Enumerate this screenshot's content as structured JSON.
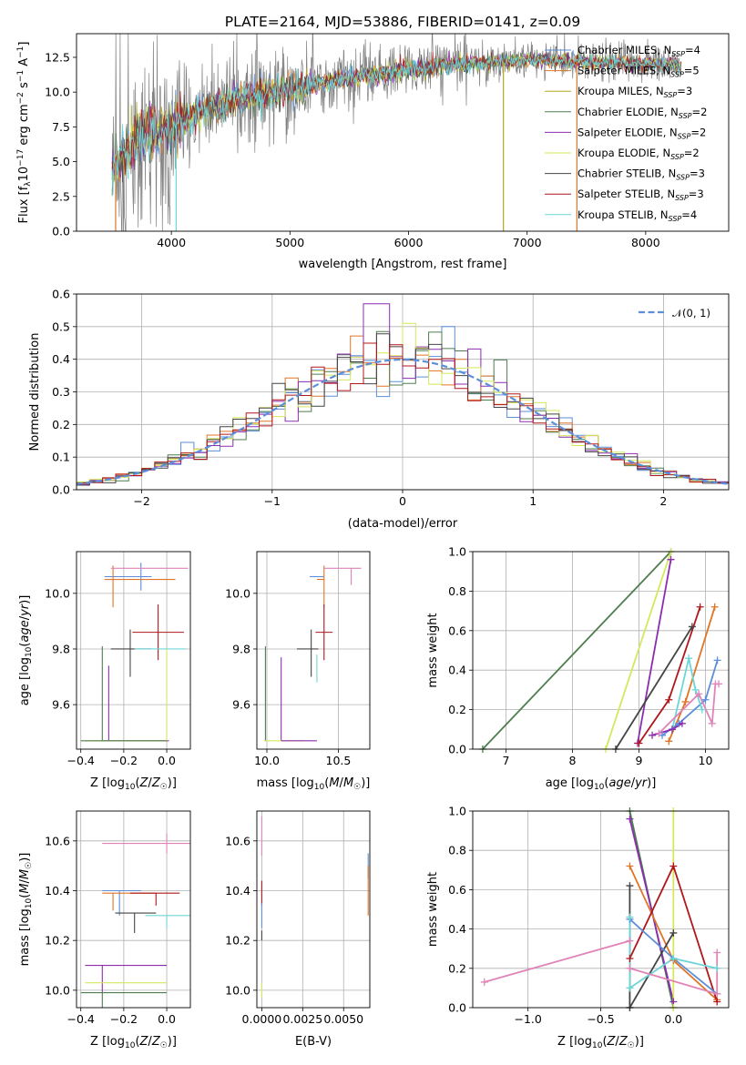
{
  "colors": {
    "Chabrier MILES": "#5b8fd9",
    "Salpeter MILES": "#e07528",
    "Kroupa MILES": "#b5a51e",
    "Chabrier ELODIE": "#4e7d4e",
    "Salpeter ELODIE": "#8c2db0",
    "Kroupa ELODIE": "#d4e85a",
    "Chabrier STELIB": "#444444",
    "Salpeter STELIB": "#b0161a",
    "Kroupa STELIB": "#6dd5d8",
    "pink": "#e083b8",
    "data_grey": "#808080",
    "normal_curve": "#5b8fd9"
  },
  "chart_data": [
    {
      "id": "spectrum",
      "type": "line",
      "title": "PLATE=2164, MJD=53886, FIBERID=0141, z=0.09",
      "xlabel": "wavelength [Angstrom, rest frame]",
      "ylabel": "Flux [f_λ 10^-17 erg cm^-2 s^-1 A^-1]",
      "xlim": [
        3200,
        8700
      ],
      "ylim": [
        0,
        14.2
      ],
      "xticks": [
        "4000",
        "5000",
        "6000",
        "7000",
        "8000"
      ],
      "yticks": [
        "0.0",
        "2.5",
        "5.0",
        "7.5",
        "10.0",
        "12.5"
      ],
      "legend_position": "right",
      "legend": [
        {
          "name": "Chabrier MILES",
          "nssp": "4"
        },
        {
          "name": "Salpeter MILES",
          "nssp": "5"
        },
        {
          "name": "Kroupa MILES",
          "nssp": "3"
        },
        {
          "name": "Chabrier ELODIE",
          "nssp": "2"
        },
        {
          "name": "Salpeter ELODIE",
          "nssp": "2"
        },
        {
          "name": "Kroupa ELODIE",
          "nssp": "2"
        },
        {
          "name": "Chabrier STELIB",
          "nssp": "3"
        },
        {
          "name": "Salpeter STELIB",
          "nssp": "3"
        },
        {
          "name": "Kroupa STELIB",
          "nssp": "4"
        }
      ],
      "continuum": {
        "x": [
          3500,
          3600,
          3700,
          3800,
          3900,
          4000,
          4200,
          4500,
          4800,
          5000,
          5200,
          5500,
          5800,
          6000,
          6300,
          6600,
          7000,
          7400,
          7800,
          8200,
          8300
        ],
        "y": [
          4.5,
          5.6,
          6.5,
          7.0,
          7.3,
          7.6,
          8.4,
          9.4,
          9.9,
          10.2,
          10.6,
          11.0,
          11.3,
          11.6,
          11.9,
          12.1,
          12.3,
          12.2,
          12.1,
          12.0,
          11.9
        ]
      },
      "features": [
        {
          "name": "drop",
          "x": 3530,
          "y_min": 0
        },
        {
          "name": "drop",
          "x": 4040,
          "y_min": 0
        },
        {
          "name": "drop",
          "x": 6800,
          "y_min": 0
        },
        {
          "name": "drop",
          "x": 7420,
          "y_min": 0
        }
      ]
    },
    {
      "id": "residuals",
      "type": "histogram",
      "xlabel": "(data-model)/error",
      "ylabel": "Normed distribution",
      "xlim": [
        -2.5,
        2.5
      ],
      "ylim": [
        0,
        0.6
      ],
      "xticks": [
        "−2",
        "−1",
        "0",
        "1",
        "2"
      ],
      "yticks": [
        "0.0",
        "0.1",
        "0.2",
        "0.3",
        "0.4",
        "0.5",
        "0.6"
      ],
      "grid": true,
      "legend_position": "top-right",
      "legend": "𝒩(0, 1)",
      "bin_width": 0.1,
      "peak_values": [
        0.57,
        0.51,
        0.5,
        0.48,
        0.47,
        0.45
      ],
      "normal": {
        "mean": 0,
        "sigma": 1
      }
    },
    {
      "id": "age_vs_Z",
      "type": "errorbar",
      "xlabel": "Z [log10(Z/Z☉)]",
      "ylabel": "age  [log10(age/yr)]",
      "xlim": [
        -0.42,
        0.11
      ],
      "ylim": [
        9.44,
        10.15
      ],
      "xticks": [
        "−0.4",
        "−0.2",
        "0.0"
      ],
      "yticks": [
        "9.6",
        "9.8",
        "10.0"
      ],
      "grid": true,
      "points": [
        {
          "series": "Chabrier MILES",
          "x": -0.12,
          "y": 10.06,
          "xerr": [
            0.17,
            0.05
          ],
          "yerr": [
            0.05,
            0.05
          ]
        },
        {
          "series": "Salpeter MILES",
          "x": -0.25,
          "y": 10.05,
          "xerr": [
            0.04,
            0.29
          ],
          "yerr": [
            0.1,
            0.05
          ]
        },
        {
          "series": "pink",
          "x": 0.1,
          "y": 10.09,
          "xerr": [
            0.36,
            0.0
          ],
          "yerr": [
            0.0,
            0.0
          ]
        },
        {
          "series": "Salpeter STELIB",
          "x": -0.04,
          "y": 9.86,
          "xerr": [
            0.12,
            0.12
          ],
          "yerr": [
            0.1,
            0.1
          ]
        },
        {
          "series": "Chabrier STELIB",
          "x": -0.17,
          "y": 9.8,
          "xerr": [
            0.09,
            0.1
          ],
          "yerr": [
            0.1,
            0.07
          ]
        },
        {
          "series": "Kroupa STELIB",
          "x": -0.03,
          "y": 9.8,
          "xerr": [
            0.12,
            0.12
          ],
          "yerr": [
            0.0,
            0.0
          ]
        },
        {
          "series": "Chabrier ELODIE",
          "x": -0.3,
          "y": 9.81,
          "xerr": [
            0.0,
            0.0
          ],
          "yerr": [
            0.34,
            0.0
          ]
        },
        {
          "series": "Salpeter ELODIE",
          "x": -0.27,
          "y": 9.47,
          "xerr": [
            0.03,
            0.28
          ],
          "yerr": [
            0.0,
            0.27
          ]
        },
        {
          "series": "Kroupa ELODIE",
          "x": 0.0,
          "y": 9.47,
          "xerr": [
            0.38,
            0.0
          ],
          "yerr": [
            0.0,
            0.33
          ]
        },
        {
          "series": "Chabrier ELODIE",
          "x": -0.4,
          "y": 9.47,
          "xerr": [
            0.0,
            0.4
          ],
          "yerr": [
            0.0,
            0.0
          ]
        }
      ]
    },
    {
      "id": "age_vs_mass",
      "type": "errorbar",
      "xlabel": "mass [log10(M/M☉)]",
      "ylabel": "",
      "xlim": [
        9.93,
        10.72
      ],
      "ylim": [
        9.44,
        10.15
      ],
      "xticks": [
        "10.0",
        "10.5"
      ],
      "yticks": [
        "9.6",
        "9.8",
        "10.0"
      ],
      "grid": true,
      "points": [
        {
          "series": "Chabrier MILES",
          "x": 10.3,
          "y": 10.06,
          "xerr": [
            0.0,
            0.1
          ],
          "yerr": [
            0.0,
            0.0
          ]
        },
        {
          "series": "Salpeter MILES",
          "x": 10.4,
          "y": 10.05,
          "xerr": [
            0.05,
            0.0
          ],
          "yerr": [
            0.1,
            0.05
          ]
        },
        {
          "series": "pink",
          "x": 10.59,
          "y": 10.09,
          "xerr": [
            0.19,
            0.07
          ],
          "yerr": [
            0.06,
            0.0
          ]
        },
        {
          "series": "Salpeter STELIB",
          "x": 10.4,
          "y": 9.86,
          "xerr": [
            0.06,
            0.06
          ],
          "yerr": [
            0.1,
            0.1
          ]
        },
        {
          "series": "Chabrier STELIB",
          "x": 10.31,
          "y": 9.8,
          "xerr": [
            0.1,
            0.05
          ],
          "yerr": [
            0.1,
            0.07
          ]
        },
        {
          "series": "Kroupa STELIB",
          "x": 10.35,
          "y": 9.78,
          "xerr": [
            0.0,
            0.0
          ],
          "yerr": [
            0.1,
            0.0
          ]
        },
        {
          "series": "Chabrier ELODIE",
          "x": 9.99,
          "y": 9.81,
          "xerr": [
            0.0,
            0.0
          ],
          "yerr": [
            0.34,
            0.0
          ]
        },
        {
          "series": "Salpeter ELODIE",
          "x": 10.1,
          "y": 9.77,
          "xerr": [
            0.0,
            0.0
          ],
          "yerr": [
            0.3,
            0.0
          ]
        },
        {
          "series": "Kroupa ELODIE",
          "x": 10.03,
          "y": 9.47,
          "xerr": [
            0.05,
            0.23
          ],
          "yerr": [
            0.0,
            0.0
          ]
        },
        {
          "series": "Salpeter ELODIE",
          "x": 10.35,
          "y": 9.47,
          "xerr": [
            0.25,
            0.0
          ],
          "yerr": [
            0.0,
            0.0
          ]
        }
      ]
    },
    {
      "id": "weight_vs_age",
      "type": "line",
      "xlabel": "age  [log10(age/yr)]",
      "ylabel": "mass weight",
      "xlim": [
        6.5,
        10.35
      ],
      "ylim": [
        0,
        1.0
      ],
      "xticks": [
        "7",
        "8",
        "9",
        "10"
      ],
      "yticks": [
        "0.0",
        "0.2",
        "0.4",
        "0.6",
        "0.8",
        "1.0"
      ],
      "grid": true,
      "series": [
        {
          "name": "Chabrier ELODIE",
          "x": [
            6.65,
            9.48
          ],
          "y": [
            0.0,
            1.0
          ]
        },
        {
          "name": "Kroupa ELODIE",
          "x": [
            8.5,
            9.48
          ],
          "y": [
            0.0,
            1.0
          ]
        },
        {
          "name": "Salpeter ELODIE",
          "x": [
            8.98,
            9.48
          ],
          "y": [
            0.03,
            0.96
          ]
        },
        {
          "name": "Chabrier STELIB",
          "x": [
            8.65,
            9.8
          ],
          "y": [
            0.0,
            0.62
          ]
        },
        {
          "name": "Salpeter STELIB",
          "x": [
            9.0,
            9.45,
            9.92
          ],
          "y": [
            0.03,
            0.25,
            0.72
          ]
        },
        {
          "name": "Salpeter MILES",
          "x": [
            9.45,
            9.7,
            10.14
          ],
          "y": [
            0.04,
            0.24,
            0.72
          ]
        },
        {
          "name": "Chabrier MILES",
          "x": [
            9.35,
            9.6,
            10.0,
            10.18
          ],
          "y": [
            0.07,
            0.13,
            0.25,
            0.45
          ]
        },
        {
          "name": "Kroupa STELIB",
          "x": [
            9.5,
            9.75,
            9.85,
            9.95
          ],
          "y": [
            0.1,
            0.46,
            0.3,
            0.2
          ]
        },
        {
          "name": "Salpeter ELODIE",
          "x": [
            9.2,
            9.5,
            9.65
          ],
          "y": [
            0.07,
            0.1,
            0.13
          ]
        },
        {
          "name": "pink",
          "x": [
            9.3,
            9.9,
            10.1,
            10.15,
            10.2
          ],
          "y": [
            0.08,
            0.28,
            0.13,
            0.33,
            0.33
          ]
        }
      ]
    },
    {
      "id": "mass_vs_Z",
      "type": "errorbar",
      "xlabel": "Z [log10(Z/Z☉)]",
      "ylabel": "mass [log10(M/M☉)]",
      "xlim": [
        -0.42,
        0.11
      ],
      "ylim": [
        9.93,
        10.72
      ],
      "xticks": [
        "−0.4",
        "−0.2",
        "0.0"
      ],
      "yticks": [
        "10.0",
        "10.2",
        "10.4",
        "10.6"
      ],
      "grid": true,
      "points": [
        {
          "series": "pink",
          "x": 0.0,
          "y": 10.59,
          "xerr": [
            0.3,
            0.11
          ],
          "yerr": [
            0.04,
            0.04
          ]
        },
        {
          "series": "Chabrier MILES",
          "x": -0.22,
          "y": 10.4,
          "xerr": [
            0.08,
            0.1
          ],
          "yerr": [
            0.1,
            0.0
          ]
        },
        {
          "series": "Salpeter MILES",
          "x": -0.25,
          "y": 10.39,
          "xerr": [
            0.05,
            0.2
          ],
          "yerr": [
            0.07,
            0.0
          ]
        },
        {
          "series": "Salpeter STELIB",
          "x": -0.05,
          "y": 10.39,
          "xerr": [
            0.12,
            0.11
          ],
          "yerr": [
            0.05,
            0.0
          ]
        },
        {
          "series": "Chabrier STELIB",
          "x": -0.15,
          "y": 10.31,
          "xerr": [
            0.09,
            0.1
          ],
          "yerr": [
            0.08,
            0.0
          ]
        },
        {
          "series": "Kroupa STELIB",
          "x": 0.0,
          "y": 10.3,
          "xerr": [
            0.1,
            0.11
          ],
          "yerr": [
            0.05,
            0.0
          ]
        },
        {
          "series": "Salpeter ELODIE",
          "x": -0.3,
          "y": 10.1,
          "xerr": [
            0.08,
            0.3
          ],
          "yerr": [
            0.11,
            0.0
          ]
        },
        {
          "series": "Kroupa ELODIE",
          "x": -0.2,
          "y": 10.03,
          "xerr": [
            0.18,
            0.2
          ],
          "yerr": [
            0.0,
            0.0
          ]
        },
        {
          "series": "Chabrier ELODIE",
          "x": -0.3,
          "y": 9.99,
          "xerr": [
            0.1,
            0.3
          ],
          "yerr": [
            0.06,
            0.0
          ]
        }
      ]
    },
    {
      "id": "mass_vs_EBV",
      "type": "errorbar",
      "xlabel": "E(B-V)",
      "ylabel": "",
      "xlim": [
        -0.0003,
        0.0066
      ],
      "ylim": [
        9.93,
        10.72
      ],
      "xticks": [
        "0.0000",
        "0.0025",
        "0.0050"
      ],
      "yticks": [
        "10.0",
        "10.2",
        "10.4",
        "10.6"
      ],
      "grid": true,
      "points": [
        {
          "series": "pink",
          "x": 0.0,
          "y": 10.62,
          "xerr": [
            0.0,
            0.0
          ],
          "yerr": [
            0.08,
            0.08
          ]
        },
        {
          "series": "Salpeter STELIB",
          "x": 0.0,
          "y": 10.39,
          "xerr": [
            0.0,
            0.0
          ],
          "yerr": [
            0.05,
            0.05
          ]
        },
        {
          "series": "Chabrier MILES",
          "x": 0.0065,
          "y": 10.5,
          "xerr": [
            0.0,
            0.0
          ],
          "yerr": [
            0.05,
            0.05
          ]
        },
        {
          "series": "Salpeter MILES",
          "x": 0.0065,
          "y": 10.38,
          "xerr": [
            0.0,
            0.0
          ],
          "yerr": [
            0.08,
            0.12
          ]
        },
        {
          "series": "Chabrier MILES",
          "x": 0.0,
          "y": 10.3,
          "xerr": [
            0.0,
            0.0
          ],
          "yerr": [
            0.05,
            0.05
          ]
        },
        {
          "series": "Kroupa ELODIE",
          "x": 0.0,
          "y": 10.0,
          "xerr": [
            0.0,
            0.0
          ],
          "yerr": [
            0.03,
            0.03
          ]
        },
        {
          "series": "Chabrier STELIB",
          "x": 0.0,
          "y": 10.22,
          "xerr": [
            0.0,
            0.0
          ],
          "yerr": [
            0.02,
            0.02
          ]
        }
      ]
    },
    {
      "id": "weight_vs_Z",
      "type": "line",
      "xlabel": "Z [log10(Z/Z☉)]",
      "ylabel": "mass weight",
      "xlim": [
        -1.38,
        0.38
      ],
      "ylim": [
        0,
        1.0
      ],
      "xticks": [
        "−1.0",
        "−0.5",
        "0.0"
      ],
      "yticks": [
        "0.0",
        "0.2",
        "0.4",
        "0.6",
        "0.8",
        "1.0"
      ],
      "grid": true,
      "series": [
        {
          "name": "Chabrier ELODIE",
          "x": [
            -0.3,
            0.0
          ],
          "y": [
            1.0,
            0.0
          ]
        },
        {
          "name": "Salpeter ELODIE",
          "x": [
            -0.3,
            0.0
          ],
          "y": [
            0.96,
            0.03
          ]
        },
        {
          "name": "Kroupa ELODIE",
          "x": [
            0.0,
            0.0
          ],
          "y": [
            0.0,
            1.0
          ]
        },
        {
          "name": "Salpeter MILES",
          "x": [
            -0.3,
            0.0,
            0.3
          ],
          "y": [
            0.72,
            0.24,
            0.04
          ]
        },
        {
          "name": "Salpeter STELIB",
          "x": [
            -0.3,
            0.0,
            0.3
          ],
          "y": [
            0.25,
            0.72,
            0.03
          ]
        },
        {
          "name": "Chabrier STELIB",
          "x": [
            -0.3,
            0.0
          ],
          "y": [
            0.0,
            0.38
          ]
        },
        {
          "name": "Chabrier STELIB",
          "x": [
            -0.3,
            -0.3
          ],
          "y": [
            0.0,
            0.62
          ]
        },
        {
          "name": "Chabrier MILES",
          "x": [
            -0.3,
            0.0,
            0.3
          ],
          "y": [
            0.45,
            0.25,
            0.07
          ]
        },
        {
          "name": "Kroupa STELIB",
          "x": [
            -0.3,
            0.0,
            0.3
          ],
          "y": [
            0.1,
            0.25,
            0.2
          ]
        },
        {
          "name": "Kroupa STELIB",
          "x": [
            -0.3,
            -0.3
          ],
          "y": [
            0.1,
            0.46
          ]
        },
        {
          "name": "pink",
          "x": [
            -1.3,
            -0.3
          ],
          "y": [
            0.13,
            0.34
          ]
        },
        {
          "name": "pink",
          "x": [
            -0.3,
            0.3
          ],
          "y": [
            0.2,
            0.07
          ]
        },
        {
          "name": "pink",
          "x": [
            0.3,
            0.3
          ],
          "y": [
            0.07,
            0.28
          ]
        }
      ]
    }
  ]
}
